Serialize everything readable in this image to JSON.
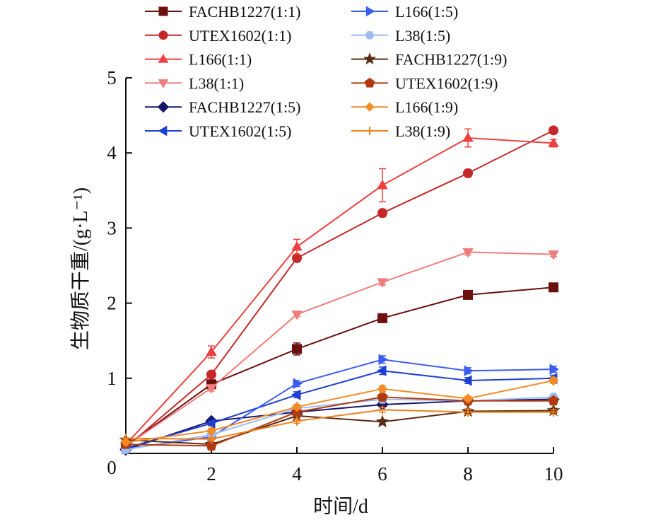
{
  "chart_data": {
    "type": "line",
    "title": "",
    "xlabel": "时间/d",
    "ylabel": "生物质干重/(g·L⁻¹)",
    "xlim": [
      0,
      10
    ],
    "ylim": [
      0,
      5
    ],
    "x_ticks": [
      "2",
      "4",
      "6",
      "8",
      "10"
    ],
    "y_ticks": [
      "0",
      "1",
      "2",
      "3",
      "4",
      "5"
    ],
    "grid": false,
    "legend_position": "top",
    "x": [
      0,
      2,
      4,
      6,
      8,
      10
    ],
    "series": [
      {
        "name": "FACHB1227(1:1)",
        "color": "#6b0f0f",
        "marker": "square",
        "values": [
          0.1,
          0.92,
          1.39,
          1.8,
          2.11,
          2.21
        ],
        "err": [
          0,
          0.03,
          0.08,
          0.05,
          0.04,
          0.04
        ]
      },
      {
        "name": "UTEX1602(1:1)",
        "color": "#c62828",
        "marker": "circle",
        "values": [
          0.08,
          1.05,
          2.6,
          3.2,
          3.73,
          4.3
        ],
        "err": [
          0,
          0.04,
          0.05,
          0.05,
          0.05,
          0.04
        ]
      },
      {
        "name": "L166(1:1)",
        "color": "#ee4040",
        "marker": "triangle-up",
        "values": [
          0.12,
          1.35,
          2.75,
          3.57,
          4.2,
          4.13
        ],
        "err": [
          0,
          0.08,
          0.1,
          0.22,
          0.12,
          0.05
        ]
      },
      {
        "name": "L38(1:1)",
        "color": "#f07c7c",
        "marker": "triangle-down",
        "values": [
          0.1,
          0.87,
          1.85,
          2.28,
          2.68,
          2.65
        ],
        "err": [
          0,
          0.04,
          0.03,
          0.04,
          0.04,
          0.03
        ]
      },
      {
        "name": "FACHB1227(1:5)",
        "color": "#16166b",
        "marker": "diamond",
        "values": [
          0.05,
          0.43,
          0.55,
          0.65,
          0.7,
          0.72
        ],
        "err": [
          0,
          0.03,
          0.03,
          0.03,
          0.03,
          0.03
        ]
      },
      {
        "name": "UTEX1602(1:5)",
        "color": "#1f3fd0",
        "marker": "triangle-left",
        "values": [
          0.07,
          0.4,
          0.78,
          1.1,
          0.97,
          1.0
        ],
        "err": [
          0,
          0.03,
          0.04,
          0.05,
          0.04,
          0.04
        ]
      },
      {
        "name": "L166(1:5)",
        "color": "#3a5cf0",
        "marker": "triangle-right",
        "values": [
          0.06,
          0.22,
          0.93,
          1.25,
          1.1,
          1.12
        ],
        "err": [
          0,
          0.03,
          0.04,
          0.05,
          0.04,
          0.04
        ]
      },
      {
        "name": "L38(1:5)",
        "color": "#9dbcf0",
        "marker": "hexagon",
        "values": [
          0.05,
          0.25,
          0.6,
          0.72,
          0.7,
          0.75
        ],
        "err": [
          0,
          0.03,
          0.03,
          0.03,
          0.03,
          0.03
        ]
      },
      {
        "name": "FACHB1227(1:9)",
        "color": "#5a2a12",
        "marker": "star",
        "values": [
          0.18,
          0.12,
          0.5,
          0.42,
          0.56,
          0.57
        ],
        "err": [
          0,
          0.02,
          0.03,
          0.03,
          0.03,
          0.03
        ]
      },
      {
        "name": "UTEX1602(1:9)",
        "color": "#b03a10",
        "marker": "pentagon",
        "values": [
          0.12,
          0.1,
          0.55,
          0.75,
          0.7,
          0.7
        ],
        "err": [
          0,
          0.02,
          0.03,
          0.03,
          0.03,
          0.03
        ]
      },
      {
        "name": "L166(1:9)",
        "color": "#f28c28",
        "marker": "small-diamond",
        "values": [
          0.15,
          0.3,
          0.62,
          0.86,
          0.73,
          0.97
        ],
        "err": [
          0,
          0.03,
          0.03,
          0.04,
          0.03,
          0.04
        ]
      },
      {
        "name": "L38(1:9)",
        "color": "#f0801a",
        "marker": "plus",
        "values": [
          0.2,
          0.19,
          0.43,
          0.58,
          0.55,
          0.55
        ],
        "err": [
          0,
          0.02,
          0.03,
          0.03,
          0.03,
          0.03
        ]
      }
    ]
  }
}
